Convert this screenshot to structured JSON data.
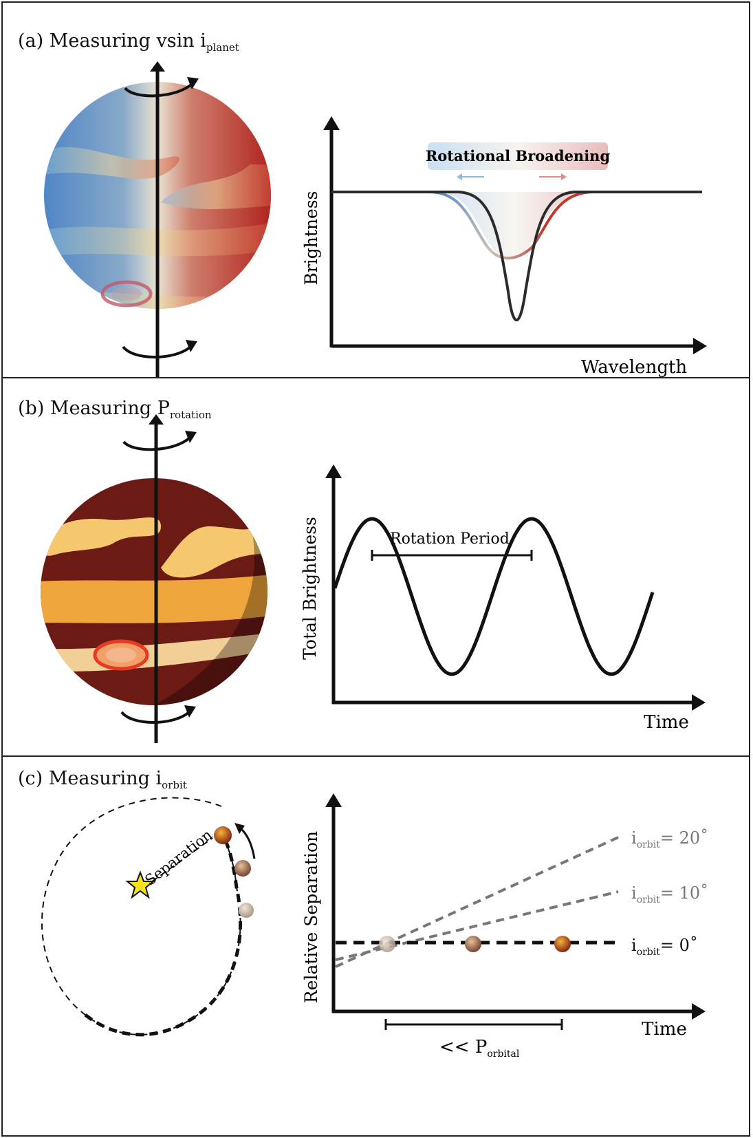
{
  "panels": {
    "a": {
      "title_prefix": "(a) Measuring vsin i",
      "title_sub": "planet",
      "y_axis_label": "Brightness",
      "x_axis_label": "Wavelength",
      "broadening_label": "Rotational Broadening"
    },
    "b": {
      "title_prefix": "(b) Measuring P",
      "title_sub": "rotation",
      "y_axis_label": "Total Brightness",
      "x_axis_label": "Time",
      "period_label": "Rotation Period"
    },
    "c": {
      "title_prefix": "(c) Measuring i",
      "title_sub": "orbit",
      "separation_label": "Separation",
      "y_axis_label": "Relative Separation",
      "x_axis_label": "Time",
      "period_prefix": "<< P",
      "period_sub": "orbital",
      "lines": [
        {
          "label_i": "i",
          "label_sub": "orbit",
          "label_value": "= 20˚"
        },
        {
          "label_i": "i",
          "label_sub": "orbit",
          "label_value": "= 10˚"
        },
        {
          "label_i": "i",
          "label_sub": "orbit",
          "label_value": "= 0˚"
        }
      ]
    }
  },
  "colors": {
    "approaching_blue": "#4f86c6",
    "receding_red": "#b8302b",
    "planet_dark": "#6b1a14",
    "band_light": "#f5c870",
    "band_orange": "#f0a53c",
    "star_yellow": "#f7e21b",
    "inclined_line_gray": "#777777"
  }
}
